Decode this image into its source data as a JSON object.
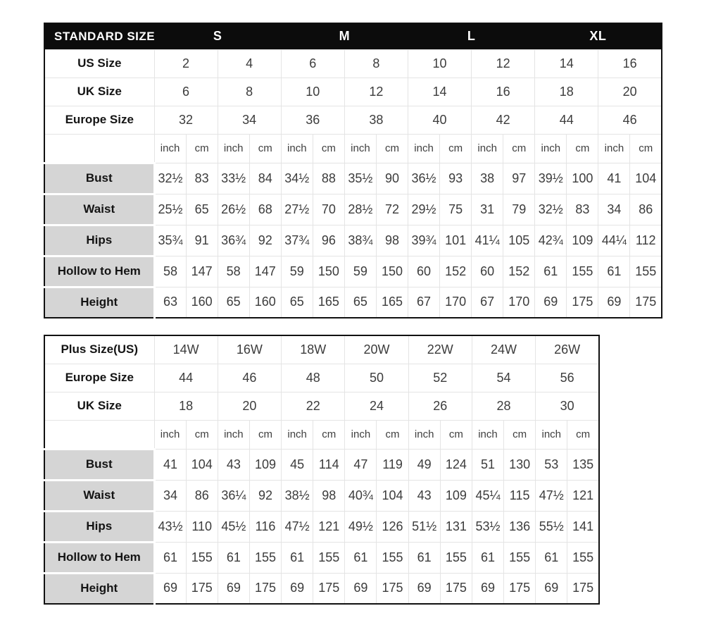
{
  "colors": {
    "header_bg": "#0c0c0c",
    "header_text": "#ffffff",
    "label_cell_bg": "#d5d5d5",
    "gridline": "#e4e4e4",
    "outer_border": "#111111",
    "number_text": "#3c3c3c",
    "label_text": "#141414"
  },
  "standard_table": {
    "title": "STANDARD SIZE",
    "groups": [
      "S",
      "M",
      "L",
      "XL"
    ],
    "size_rows": [
      {
        "label": "US Size",
        "values": [
          "2",
          "4",
          "6",
          "8",
          "10",
          "12",
          "14",
          "16"
        ]
      },
      {
        "label": "UK Size",
        "values": [
          "6",
          "8",
          "10",
          "12",
          "14",
          "16",
          "18",
          "20"
        ]
      },
      {
        "label": "Europe Size",
        "values": [
          "32",
          "34",
          "36",
          "38",
          "40",
          "42",
          "44",
          "46"
        ]
      }
    ],
    "units": [
      "inch",
      "cm"
    ],
    "unit_pairs": 8,
    "measure_rows": [
      {
        "label": "Bust",
        "values": [
          "32½",
          "83",
          "33½",
          "84",
          "34½",
          "88",
          "35½",
          "90",
          "36½",
          "93",
          "38",
          "97",
          "39½",
          "100",
          "41",
          "104"
        ]
      },
      {
        "label": "Waist",
        "values": [
          "25½",
          "65",
          "26½",
          "68",
          "27½",
          "70",
          "28½",
          "72",
          "29½",
          "75",
          "31",
          "79",
          "32½",
          "83",
          "34",
          "86"
        ]
      },
      {
        "label": "Hips",
        "values": [
          "35¾",
          "91",
          "36¾",
          "92",
          "37¾",
          "96",
          "38¾",
          "98",
          "39¾",
          "101",
          "41¼",
          "105",
          "42¾",
          "109",
          "44¼",
          "112"
        ]
      },
      {
        "label": "Hollow to Hem",
        "values": [
          "58",
          "147",
          "58",
          "147",
          "59",
          "150",
          "59",
          "150",
          "60",
          "152",
          "60",
          "152",
          "61",
          "155",
          "61",
          "155"
        ]
      },
      {
        "label": "Height",
        "values": [
          "63",
          "160",
          "65",
          "160",
          "65",
          "165",
          "65",
          "165",
          "67",
          "170",
          "67",
          "170",
          "69",
          "175",
          "69",
          "175"
        ]
      }
    ]
  },
  "plus_table": {
    "size_rows": [
      {
        "label": "Plus Size(US)",
        "values": [
          "14W",
          "16W",
          "18W",
          "20W",
          "22W",
          "24W",
          "26W"
        ]
      },
      {
        "label": "Europe Size",
        "values": [
          "44",
          "46",
          "48",
          "50",
          "52",
          "54",
          "56"
        ]
      },
      {
        "label": "UK Size",
        "values": [
          "18",
          "20",
          "22",
          "24",
          "26",
          "28",
          "30"
        ]
      }
    ],
    "units": [
      "inch",
      "cm"
    ],
    "unit_pairs": 7,
    "measure_rows": [
      {
        "label": "Bust",
        "values": [
          "41",
          "104",
          "43",
          "109",
          "45",
          "114",
          "47",
          "119",
          "49",
          "124",
          "51",
          "130",
          "53",
          "135"
        ]
      },
      {
        "label": "Waist",
        "values": [
          "34",
          "86",
          "36¼",
          "92",
          "38½",
          "98",
          "40¾",
          "104",
          "43",
          "109",
          "45¼",
          "115",
          "47½",
          "121"
        ]
      },
      {
        "label": "Hips",
        "values": [
          "43½",
          "110",
          "45½",
          "116",
          "47½",
          "121",
          "49½",
          "126",
          "51½",
          "131",
          "53½",
          "136",
          "55½",
          "141"
        ]
      },
      {
        "label": "Hollow to Hem",
        "values": [
          "61",
          "155",
          "61",
          "155",
          "61",
          "155",
          "61",
          "155",
          "61",
          "155",
          "61",
          "155",
          "61",
          "155"
        ]
      },
      {
        "label": "Height",
        "values": [
          "69",
          "175",
          "69",
          "175",
          "69",
          "175",
          "69",
          "175",
          "69",
          "175",
          "69",
          "175",
          "69",
          "175"
        ]
      }
    ]
  }
}
